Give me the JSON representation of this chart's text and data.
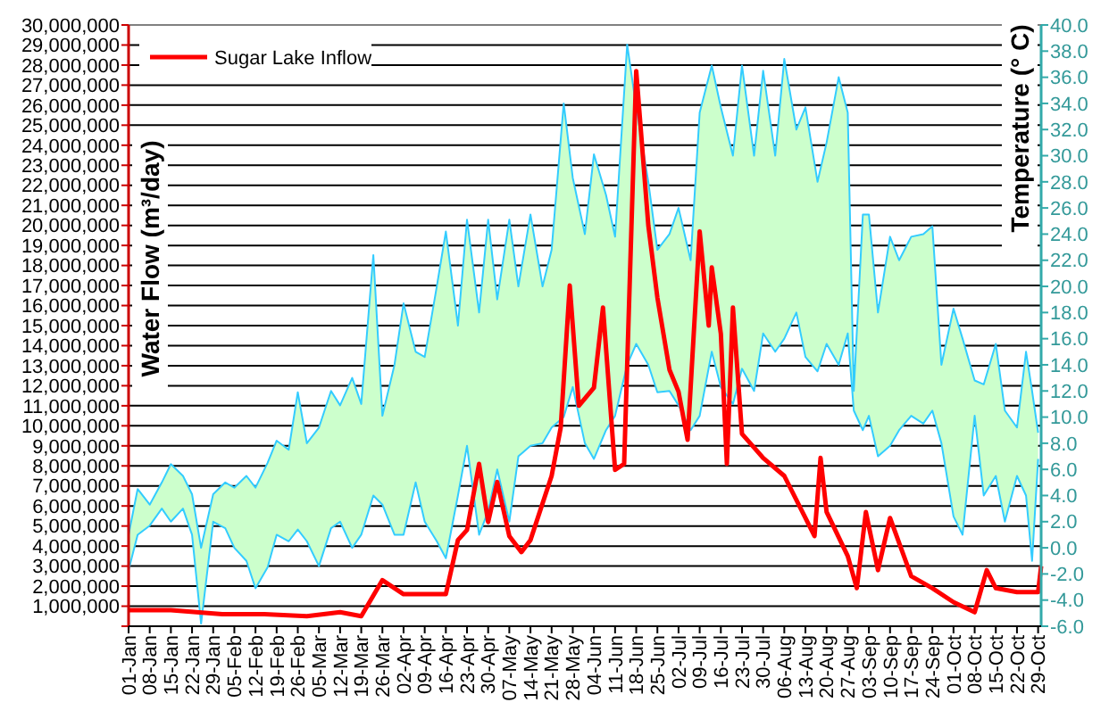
{
  "chart_data": {
    "type": "line",
    "ylabel": "Water Flow (m³/day)",
    "y2label": "Temperature (° C)",
    "xlim": [
      "--01-01",
      "--10-30"
    ],
    "xticks": [
      {
        "value": "--01-01",
        "label": "01-Jan"
      },
      {
        "value": "--01-08",
        "label": "08-Jan"
      },
      {
        "value": "--01-15",
        "label": "15-Jan"
      },
      {
        "value": "--01-22",
        "label": "22-Jan"
      },
      {
        "value": "--01-29",
        "label": "29-Jan"
      },
      {
        "value": "--02-05",
        "label": "05-Feb"
      },
      {
        "value": "--02-12",
        "label": "12-Feb"
      },
      {
        "value": "--02-19",
        "label": "19-Feb"
      },
      {
        "value": "--02-26",
        "label": "26-Feb"
      },
      {
        "value": "--03-05",
        "label": "05-Mar"
      },
      {
        "value": "--03-12",
        "label": "12-Mar"
      },
      {
        "value": "--03-19",
        "label": "19-Mar"
      },
      {
        "value": "--03-26",
        "label": "26-Mar"
      },
      {
        "value": "--04-02",
        "label": "02-Apr"
      },
      {
        "value": "--04-09",
        "label": "09-Apr"
      },
      {
        "value": "--04-16",
        "label": "16-Apr"
      },
      {
        "value": "--04-23",
        "label": "23-Apr"
      },
      {
        "value": "--04-30",
        "label": "30-Apr"
      },
      {
        "value": "--05-07",
        "label": "07-May"
      },
      {
        "value": "--05-14",
        "label": "14-May"
      },
      {
        "value": "--05-21",
        "label": "21-May"
      },
      {
        "value": "--05-28",
        "label": "28-May"
      },
      {
        "value": "--06-04",
        "label": "04-Jun"
      },
      {
        "value": "--06-11",
        "label": "11-Jun"
      },
      {
        "value": "--06-18",
        "label": "18-Jun"
      },
      {
        "value": "--06-25",
        "label": "25-Jun"
      },
      {
        "value": "--07-02",
        "label": "02-Jul"
      },
      {
        "value": "--07-09",
        "label": "09-Jul"
      },
      {
        "value": "--07-16",
        "label": "16-Jul"
      },
      {
        "value": "--07-23",
        "label": "23-Jul"
      },
      {
        "value": "--07-30",
        "label": "30-Jul"
      },
      {
        "value": "--08-06",
        "label": "06-Aug"
      },
      {
        "value": "--08-13",
        "label": "13-Aug"
      },
      {
        "value": "--08-20",
        "label": "20-Aug"
      },
      {
        "value": "--08-27",
        "label": "27-Aug"
      },
      {
        "value": "--09-03",
        "label": "03-Sep"
      },
      {
        "value": "--09-10",
        "label": "10-Sep"
      },
      {
        "value": "--09-17",
        "label": "17-Sep"
      },
      {
        "value": "--09-24",
        "label": "24-Sep"
      },
      {
        "value": "--10-01",
        "label": "01-Oct"
      },
      {
        "value": "--10-08",
        "label": "08-Oct"
      },
      {
        "value": "--10-15",
        "label": "15-Oct"
      },
      {
        "value": "--10-22",
        "label": "22-Oct"
      },
      {
        "value": "--10-29",
        "label": "29-Oct"
      }
    ],
    "ylim": [
      0,
      30000000
    ],
    "yticks": [
      {
        "value": 0,
        "label": null
      },
      {
        "value": 1000000,
        "label": "1,000,000"
      },
      {
        "value": 2000000,
        "label": "2,000,000"
      },
      {
        "value": 3000000,
        "label": "3,000,000"
      },
      {
        "value": 4000000,
        "label": "4,000,000"
      },
      {
        "value": 5000000,
        "label": "5,000,000"
      },
      {
        "value": 6000000,
        "label": "6,000,000"
      },
      {
        "value": 7000000,
        "label": "7,000,000"
      },
      {
        "value": 8000000,
        "label": "8,000,000"
      },
      {
        "value": 9000000,
        "label": "9,000,000"
      },
      {
        "value": 10000000,
        "label": "10,000,000"
      },
      {
        "value": 11000000,
        "label": "11,000,000"
      },
      {
        "value": 12000000,
        "label": "12,000,000"
      },
      {
        "value": 13000000,
        "label": "13,000,000"
      },
      {
        "value": 14000000,
        "label": "14,000,000"
      },
      {
        "value": 15000000,
        "label": "15,000,000"
      },
      {
        "value": 16000000,
        "label": "16,000,000"
      },
      {
        "value": 17000000,
        "label": "17,000,000"
      },
      {
        "value": 18000000,
        "label": "18,000,000"
      },
      {
        "value": 19000000,
        "label": "19,000,000"
      },
      {
        "value": 20000000,
        "label": "20,000,000"
      },
      {
        "value": 21000000,
        "label": "21,000,000"
      },
      {
        "value": 22000000,
        "label": "22,000,000"
      },
      {
        "value": 23000000,
        "label": "23,000,000"
      },
      {
        "value": 24000000,
        "label": "24,000,000"
      },
      {
        "value": 25000000,
        "label": "25,000,000"
      },
      {
        "value": 26000000,
        "label": "26,000,000"
      },
      {
        "value": 27000000,
        "label": "27,000,000"
      },
      {
        "value": 28000000,
        "label": "28,000,000"
      },
      {
        "value": 29000000,
        "label": "29,000,000"
      },
      {
        "value": 30000000,
        "label": "30,000,000"
      }
    ],
    "y2lim": [
      -6,
      40
    ],
    "y2ticks": [
      {
        "value": -6,
        "label": "-6.0"
      },
      {
        "value": -4,
        "label": "-4.0"
      },
      {
        "value": -2,
        "label": "-2.0"
      },
      {
        "value": 0,
        "label": "0.0"
      },
      {
        "value": 2,
        "label": "2.0"
      },
      {
        "value": 4,
        "label": "4.0"
      },
      {
        "value": 6,
        "label": "6.0"
      },
      {
        "value": 8,
        "label": "8.0"
      },
      {
        "value": 10,
        "label": "10.0"
      },
      {
        "value": 12,
        "label": "12.0"
      },
      {
        "value": 14,
        "label": "14.0"
      },
      {
        "value": 16,
        "label": "16.0"
      },
      {
        "value": 18,
        "label": "18.0"
      },
      {
        "value": 20,
        "label": "20.0"
      },
      {
        "value": 22,
        "label": "22.0"
      },
      {
        "value": 24,
        "label": "24.0"
      },
      {
        "value": 26,
        "label": "26.0"
      },
      {
        "value": 28,
        "label": "28.0"
      },
      {
        "value": 30,
        "label": "30.0"
      },
      {
        "value": 32,
        "label": "32.0"
      },
      {
        "value": 34,
        "label": "34.0"
      },
      {
        "value": 36,
        "label": "36.0"
      },
      {
        "value": 38,
        "label": "38.0"
      },
      {
        "value": 40,
        "label": "40.0"
      }
    ],
    "grid": "y",
    "legend": "top left",
    "series": [
      {
        "type": "line",
        "axis": "y2",
        "color": "#33ccff",
        "x": [
          "--01-01",
          "--01-04",
          "--01-08",
          "--01-12",
          "--01-15",
          "--01-19",
          "--01-22",
          "--01-25",
          "--01-29",
          "--02-02",
          "--02-05",
          "--02-09",
          "--02-12",
          "--02-16",
          "--02-19",
          "--02-23",
          "--02-26",
          "--03-01",
          "--03-05",
          "--03-09",
          "--03-12",
          "--03-16",
          "--03-19",
          "--03-23",
          "--03-26",
          "--03-30",
          "--04-02",
          "--04-06",
          "--04-09",
          "--04-13",
          "--04-16",
          "--04-20",
          "--04-23",
          "--04-27",
          "--04-30",
          "--05-03",
          "--05-07",
          "--05-10",
          "--05-14",
          "--05-18",
          "--05-21",
          "--05-25",
          "--05-28",
          "--06-01",
          "--06-04",
          "--06-08",
          "--06-11",
          "--06-15",
          "--06-18",
          "--06-22",
          "--06-25",
          "--06-29",
          "--07-02",
          "--07-06",
          "--07-09",
          "--07-13",
          "--07-16",
          "--07-20",
          "--07-23",
          "--07-27",
          "--07-30",
          "--08-03",
          "--08-06",
          "--08-10",
          "--08-13",
          "--08-17",
          "--08-20",
          "--08-24",
          "--08-27",
          "--08-29",
          "--09-01",
          "--09-03",
          "--09-06",
          "--09-10",
          "--09-13",
          "--09-17",
          "--09-21",
          "--09-24",
          "--09-27",
          "--10-01",
          "--10-04",
          "--10-08",
          "--10-11",
          "--10-15",
          "--10-18",
          "--10-22",
          "--10-25",
          "--10-27",
          "--10-29"
        ],
        "lower": [
          -1.7,
          1.0,
          1.7,
          3.0,
          2.0,
          3.0,
          1.0,
          -5.8,
          2.0,
          1.5,
          0.0,
          -1.0,
          -3.1,
          -1.5,
          1.0,
          0.5,
          1.4,
          0.5,
          -1.4,
          1.5,
          2.0,
          0.0,
          1.0,
          4.0,
          3.3,
          1.0,
          1.0,
          5.0,
          2.0,
          0.5,
          -0.8,
          4.0,
          7.8,
          1.0,
          2.8,
          6.0,
          2.0,
          7.0,
          7.8,
          8.0,
          9.2,
          10.0,
          12.3,
          8.0,
          6.8,
          9.0,
          10.1,
          14.0,
          15.6,
          14.0,
          11.9,
          12.0,
          10.9,
          9.0,
          10.1,
          15.0,
          12.3,
          11.0,
          13.7,
          12.0,
          16.4,
          15.0,
          16.0,
          18.0,
          14.6,
          13.5,
          15.6,
          14.0,
          16.4,
          10.5,
          9.0,
          10.1,
          7.0,
          7.8,
          9.0,
          10.1,
          9.5,
          10.5,
          8.0,
          2.4,
          1.0,
          10.1,
          4.0,
          5.5,
          2.0,
          5.5,
          4.0,
          -1.0,
          6.8
        ],
        "values": [
          1.0,
          4.5,
          3.3,
          5.0,
          6.4,
          5.5,
          4.1,
          0.0,
          4.1,
          5.0,
          4.6,
          5.5,
          4.6,
          6.5,
          8.2,
          7.5,
          11.9,
          8.0,
          9.2,
          12.0,
          10.9,
          13.0,
          11.0,
          22.4,
          10.1,
          14.0,
          18.7,
          15.0,
          14.6,
          20.0,
          24.2,
          17.0,
          25.1,
          18.0,
          25.1,
          19.0,
          25.1,
          20.0,
          25.5,
          20.0,
          22.8,
          34.0,
          28.3,
          24.0,
          30.1,
          27.0,
          23.8,
          38.5,
          33.7,
          28.0,
          22.8,
          24.0,
          26.0,
          22.0,
          33.3,
          36.9,
          33.7,
          30.0,
          36.9,
          30.0,
          36.5,
          30.0,
          37.4,
          32.0,
          33.7,
          28.0,
          31.0,
          36.0,
          33.3,
          12.0,
          25.5,
          25.5,
          18.0,
          23.8,
          22.0,
          23.8,
          24.0,
          24.6,
          14.0,
          18.3,
          16.0,
          12.8,
          12.5,
          15.6,
          10.5,
          9.2,
          15.0,
          12.0,
          8.8
        ],
        "upper": [
          1.0,
          4.5,
          3.3,
          5.0,
          6.4,
          5.5,
          4.1,
          0.0,
          4.1,
          5.0,
          4.6,
          5.5,
          4.6,
          6.5,
          8.2,
          7.5,
          11.9,
          8.0,
          9.2,
          12.0,
          10.9,
          13.0,
          11.0,
          22.4,
          10.1,
          14.0,
          18.7,
          15.0,
          14.6,
          20.0,
          24.2,
          17.0,
          25.1,
          18.0,
          25.1,
          19.0,
          25.1,
          20.0,
          25.5,
          20.0,
          22.8,
          34.0,
          28.3,
          24.0,
          30.1,
          27.0,
          23.8,
          38.5,
          33.7,
          28.0,
          22.8,
          24.0,
          26.0,
          22.0,
          33.3,
          36.9,
          33.7,
          30.0,
          36.9,
          30.0,
          36.5,
          30.0,
          37.4,
          32.0,
          33.7,
          28.0,
          31.0,
          36.0,
          33.3,
          12.0,
          25.5,
          25.5,
          18.0,
          23.8,
          22.0,
          23.8,
          24.0,
          24.6,
          14.0,
          18.3,
          16.0,
          12.8,
          12.5,
          15.6,
          10.5,
          9.2,
          15.0,
          12.0,
          8.8
        ]
      },
      {
        "type": "line",
        "axis": "y2",
        "color": "#33ccff",
        "x": [
          "--01-01",
          "--01-04",
          "--01-08",
          "--01-12",
          "--01-15",
          "--01-19",
          "--01-22",
          "--01-25",
          "--01-29",
          "--02-02",
          "--02-05",
          "--02-09",
          "--02-12",
          "--02-16",
          "--02-19",
          "--02-23",
          "--02-26",
          "--03-01",
          "--03-05",
          "--03-09",
          "--03-12",
          "--03-16",
          "--03-19",
          "--03-23",
          "--03-26",
          "--03-30",
          "--04-02",
          "--04-06",
          "--04-09",
          "--04-13",
          "--04-16",
          "--04-20",
          "--04-23",
          "--04-27",
          "--04-30",
          "--05-03",
          "--05-07",
          "--05-10",
          "--05-14",
          "--05-18",
          "--05-21",
          "--05-25",
          "--05-28",
          "--06-01",
          "--06-04",
          "--06-08",
          "--06-11",
          "--06-15",
          "--06-18",
          "--06-22",
          "--06-25",
          "--06-29",
          "--07-02",
          "--07-06",
          "--07-09",
          "--07-13",
          "--07-16",
          "--07-20",
          "--07-23",
          "--07-27",
          "--07-30",
          "--08-03",
          "--08-06",
          "--08-10",
          "--08-13",
          "--08-17",
          "--08-20",
          "--08-24",
          "--08-27",
          "--08-29",
          "--09-01",
          "--09-03",
          "--09-06",
          "--09-10",
          "--09-13",
          "--09-17",
          "--09-21",
          "--09-24",
          "--09-27",
          "--10-01",
          "--10-04",
          "--10-08",
          "--10-11",
          "--10-15",
          "--10-18",
          "--10-22",
          "--10-25",
          "--10-27",
          "--10-29"
        ],
        "values": [
          -1.7,
          1.0,
          1.7,
          3.0,
          2.0,
          3.0,
          1.0,
          -5.8,
          2.0,
          1.5,
          0.0,
          -1.0,
          -3.1,
          -1.5,
          1.0,
          0.5,
          1.4,
          0.5,
          -1.4,
          1.5,
          2.0,
          0.0,
          1.0,
          4.0,
          3.3,
          1.0,
          1.0,
          5.0,
          2.0,
          0.5,
          -0.8,
          4.0,
          7.8,
          1.0,
          2.8,
          6.0,
          2.0,
          7.0,
          7.8,
          8.0,
          9.2,
          10.0,
          12.3,
          8.0,
          6.8,
          9.0,
          10.1,
          14.0,
          15.6,
          14.0,
          11.9,
          12.0,
          10.9,
          9.0,
          10.1,
          15.0,
          12.3,
          11.0,
          13.7,
          12.0,
          16.4,
          15.0,
          16.0,
          18.0,
          14.6,
          13.5,
          15.6,
          14.0,
          16.4,
          10.5,
          9.0,
          10.1,
          7.0,
          7.8,
          9.0,
          10.1,
          9.5,
          10.5,
          8.0,
          2.4,
          1.0,
          10.1,
          4.0,
          5.5,
          2.0,
          5.5,
          4.0,
          -1.0,
          6.8
        ]
      },
      {
        "name": "Sugar Lake Inflow",
        "color": "#ff0000",
        "x": [
          "--01-01",
          "--01-15",
          "--02-01",
          "--02-15",
          "--03-01",
          "--03-12",
          "--03-19",
          "--03-26",
          "--04-02",
          "--04-09",
          "--04-16",
          "--04-20",
          "--04-23",
          "--04-27",
          "--04-30",
          "--05-03",
          "--05-07",
          "--05-11",
          "--05-14",
          "--05-21",
          "--05-24",
          "--05-27",
          "--05-30",
          "--06-04",
          "--06-07",
          "--06-11",
          "--06-14",
          "--06-18",
          "--06-22",
          "--06-25",
          "--06-29",
          "--07-02",
          "--07-05",
          "--07-09",
          "--07-12",
          "--07-13",
          "--07-16",
          "--07-18",
          "--07-20",
          "--07-23",
          "--07-30",
          "--08-06",
          "--08-13",
          "--08-16",
          "--08-18",
          "--08-20",
          "--08-27",
          "--08-30",
          "--09-02",
          "--09-06",
          "--09-10",
          "--09-17",
          "--09-24",
          "--10-01",
          "--10-08",
          "--10-12",
          "--10-15",
          "--10-22",
          "--10-29",
          "--10-30"
        ],
        "values": [
          800000,
          800000,
          600000,
          600000,
          500000,
          700000,
          500000,
          2300000,
          1600000,
          1600000,
          1600000,
          4300000,
          4800000,
          8100000,
          5200000,
          7200000,
          4500000,
          3700000,
          4300000,
          7500000,
          9900000,
          17000000,
          11000000,
          11900000,
          15900000,
          7800000,
          8100000,
          27700000,
          20000000,
          16400000,
          12800000,
          11700000,
          9300000,
          19700000,
          15000000,
          17900000,
          14600000,
          8100000,
          15900000,
          9600000,
          8400000,
          7500000,
          5400000,
          4500000,
          8400000,
          5700000,
          3500000,
          1900000,
          5700000,
          2800000,
          5400000,
          2500000,
          1900000,
          1200000,
          700000,
          2800000,
          1900000,
          1700000,
          1700000,
          3000000
        ]
      }
    ]
  }
}
